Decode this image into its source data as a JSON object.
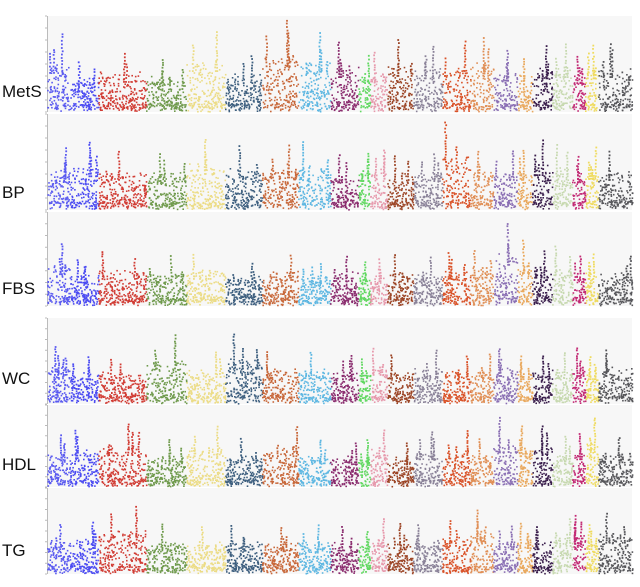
{
  "chart_data": [
    {
      "type": "scatter",
      "trait": "MetS",
      "ylim": [
        0,
        8
      ],
      "peaks": [
        6.5,
        4.2,
        5.0,
        4.4,
        6.8,
        4.8,
        7.6,
        6.7,
        5.8,
        4.8,
        5.2,
        6.0,
        5.6,
        6.0,
        6.4,
        5.2,
        4.6,
        5.6,
        5.8,
        4.8,
        5.6,
        5.8,
        5.4,
        5.2,
        5.6,
        4.8
      ]
    },
    {
      "type": "scatter",
      "trait": "BP",
      "ylim": [
        0,
        8
      ],
      "peaks": [
        5.2,
        5.6,
        5.0,
        4.8,
        6.0,
        5.4,
        5.4,
        5.8,
        4.6,
        4.8,
        5.2,
        4.6,
        4.8,
        7.4,
        5.0,
        5.0,
        5.2,
        5.8,
        5.6,
        4.6,
        5.2,
        5.0,
        5.8,
        5.6,
        4.6,
        7.0
      ]
    },
    {
      "type": "scatter",
      "trait": "FBS",
      "ylim": [
        0,
        8
      ],
      "peaks": [
        5.4,
        4.0,
        4.6,
        4.4,
        4.6,
        3.6,
        4.4,
        3.8,
        4.2,
        3.8,
        4.2,
        4.4,
        4.2,
        4.6,
        4.8,
        7.0,
        5.6,
        4.8,
        5.2,
        4.4,
        4.6,
        4.4,
        4.4,
        4.2,
        4.4,
        4.0
      ]
    },
    {
      "type": "scatter",
      "trait": "WC",
      "ylim": [
        0,
        8
      ],
      "peaks": [
        5.4,
        4.6,
        4.4,
        6.6,
        5.0,
        6.6,
        5.0,
        4.8,
        4.6,
        4.2,
        5.4,
        4.8,
        5.0,
        4.6,
        4.8,
        5.2,
        4.6,
        4.6,
        4.8,
        5.2,
        4.6,
        5.2,
        5.2,
        4.8,
        5.2,
        5.4
      ]
    },
    {
      "type": "scatter",
      "trait": "HDL",
      "ylim": [
        0,
        8
      ],
      "peaks": [
        5.2,
        5.6,
        6.2,
        4.6,
        6.0,
        4.8,
        6.0,
        4.6,
        4.4,
        4.6,
        5.6,
        4.4,
        5.4,
        5.6,
        4.8,
        6.8,
        6.0,
        6.2,
        5.0,
        5.4,
        6.8,
        4.8,
        5.2,
        5.0,
        6.0,
        4.8
      ]
    },
    {
      "type": "scatter",
      "trait": "TG",
      "ylim": [
        0,
        8
      ],
      "peaks": [
        4.6,
        4.8,
        6.4,
        4.6,
        4.4,
        4.6,
        4.4,
        4.6,
        4.4,
        4.2,
        5.2,
        4.8,
        4.6,
        5.2,
        6.0,
        4.6,
        4.8,
        4.6,
        5.2,
        5.6,
        4.6,
        5.8,
        4.6,
        4.4,
        4.6,
        4.8
      ]
    }
  ],
  "chromosome_colors": [
    "#5a5af0",
    "#4b4bf2",
    "#d13c34",
    "#6f9a4c",
    "#ecdc86",
    "#3e5f7f",
    "#c8683a",
    "#5eb7e2",
    "#8a2c6e",
    "#62d862",
    "#e79aad",
    "#9c4526",
    "#8a8298",
    "#d95228",
    "#e08f56",
    "#8a6fb4",
    "#e9a85d",
    "#3a1e4c",
    "#c7d9b0",
    "#c22a74",
    "#efdb60",
    "#56565a"
  ]
}
